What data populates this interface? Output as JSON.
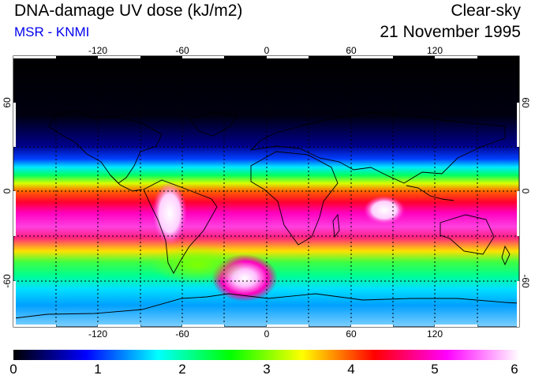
{
  "header": {
    "title": "DNA-damage UV dose (kJ/m2)",
    "subtitle": "MSR - KNMI",
    "mode": "Clear-sky",
    "date": "21 November 1995"
  },
  "map": {
    "projection": "equirectangular",
    "lon_range": [
      -180,
      180
    ],
    "lat_range": [
      -90,
      90
    ],
    "lon_ticks": [
      "-120",
      "-60",
      "0",
      "60",
      "120"
    ],
    "lat_ticks": [
      "60",
      "0",
      "-60"
    ],
    "grid": "dotted every 30 degrees"
  },
  "colorbar": {
    "tick_labels": [
      "0",
      "1",
      "2",
      "3",
      "4",
      "5",
      "6"
    ],
    "colors": [
      "#000000",
      "#0000ff",
      "#00ffff",
      "#00ff00",
      "#ffff00",
      "#ff0000",
      "#ff00ff",
      "#ffffff"
    ]
  }
}
